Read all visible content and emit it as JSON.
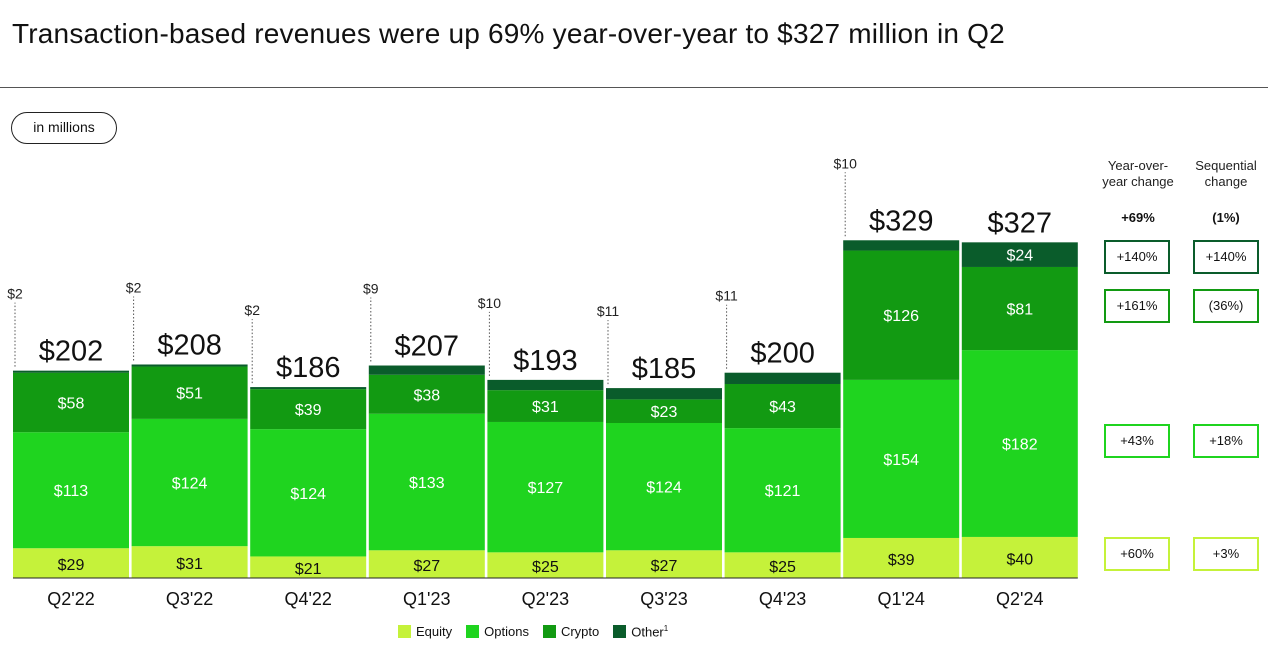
{
  "title": "Transaction-based revenues were up 69% year-over-year to $327 million in Q2",
  "unit_label": "in millions",
  "colors": {
    "equity": "#c5f23a",
    "options": "#1fd41f",
    "crypto": "#129a12",
    "other": "#0a5c2b",
    "axis": "#222222"
  },
  "chart_data": {
    "type": "bar",
    "stacked": true,
    "categories": [
      "Q2'22",
      "Q3'22",
      "Q4'22",
      "Q1'23",
      "Q2'23",
      "Q3'23",
      "Q4'23",
      "Q1'24",
      "Q2'24"
    ],
    "series": [
      {
        "name": "Equity",
        "values": [
          29,
          31,
          21,
          27,
          25,
          27,
          25,
          39,
          40
        ]
      },
      {
        "name": "Options",
        "values": [
          113,
          124,
          124,
          133,
          127,
          124,
          121,
          154,
          182
        ]
      },
      {
        "name": "Crypto",
        "values": [
          58,
          51,
          39,
          38,
          31,
          23,
          43,
          126,
          81
        ]
      },
      {
        "name": "Other",
        "values": [
          2,
          2,
          2,
          9,
          10,
          11,
          11,
          10,
          24
        ]
      }
    ],
    "totals": [
      202,
      208,
      186,
      207,
      193,
      185,
      200,
      329,
      327
    ],
    "total_labels": [
      "$202",
      "$208",
      "$186",
      "$207",
      "$193",
      "$185",
      "$200",
      "$329",
      "$327"
    ],
    "segment_labels": {
      "Equity": [
        "$29",
        "$31",
        "$21",
        "$27",
        "$25",
        "$27",
        "$25",
        "$39",
        "$40"
      ],
      "Options": [
        "$113",
        "$124",
        "$124",
        "$133",
        "$127",
        "$124",
        "$121",
        "$154",
        "$182"
      ],
      "Crypto": [
        "$58",
        "$51",
        "$39",
        "$38",
        "$31",
        "$23",
        "$43",
        "$126",
        "$81"
      ],
      "Other": [
        "$2",
        "$2",
        "$2",
        "$9",
        "$10",
        "$11",
        "$11",
        "$10",
        "$24"
      ]
    },
    "legend": [
      "Equity",
      "Options",
      "Crypto",
      "Other"
    ],
    "legend_footnote": "1",
    "legend_position": "bottom",
    "grid": false
  },
  "change_table": {
    "headers": [
      "Year-over-\nyear change",
      "Sequential\nchange"
    ],
    "totals": [
      "+69%",
      "(1%)"
    ],
    "rows": [
      {
        "series": "Other",
        "yoy": "+140%",
        "seq": "+140%"
      },
      {
        "series": "Crypto",
        "yoy": "+161%",
        "seq": "(36%)"
      },
      {
        "series": "Options",
        "yoy": "+43%",
        "seq": "+18%"
      },
      {
        "series": "Equity",
        "yoy": "+60%",
        "seq": "+3%"
      }
    ]
  }
}
